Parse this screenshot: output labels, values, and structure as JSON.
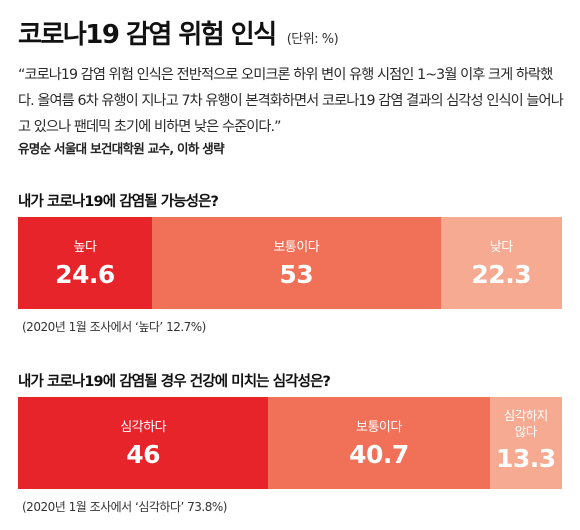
{
  "header": {
    "title": "코로나19 감염 위험 인식",
    "unit": "(단위: %)"
  },
  "quote": "“코로나19 감염 위험 인식은 전반적으로 오미크론 하위 변이 유행 시점인 1~3월 이후 크게 하락했다. 올여름 6차 유행이 지나고 7차 유행이 본격화하면서 코로나19 감염 결과의 심각성 인식이 늘어나고 있으나 팬데믹 초기에 비하면 낮은 수준이다.”",
  "source": "유명순 서울대 보건대학원 교수, 이하 생략",
  "chart_data": [
    {
      "type": "bar",
      "stacked": true,
      "title": "내가 코로나19에 감염될 가능성은?",
      "categories": [
        "높다",
        "보통이다",
        "낮다"
      ],
      "values": [
        24.6,
        53,
        22.3
      ],
      "value_labels": [
        "24.6",
        "53",
        "22.3"
      ],
      "colors": [
        "#e8242b",
        "#f07058",
        "#f6aa92"
      ],
      "note": "(2020년 1월 조사에서 ‘높다’ 12.7%)"
    },
    {
      "type": "bar",
      "stacked": true,
      "title": "내가 코로나19에 감염될 경우 건강에 미치는 심각성은?",
      "categories": [
        "심각하다",
        "보통이다",
        "심각하지 않다"
      ],
      "values": [
        46,
        40.7,
        13.3
      ],
      "value_labels": [
        "46",
        "40.7",
        "13.3"
      ],
      "colors": [
        "#e8242b",
        "#f07058",
        "#f6aa92"
      ],
      "note": "(2020년 1월 조사에서 ‘심각하다’ 73.8%)"
    }
  ]
}
